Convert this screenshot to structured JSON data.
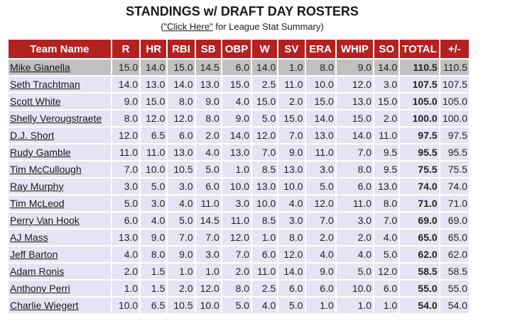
{
  "page": {
    "title": "STANDINGS w/ DRAFT DAY ROSTERS",
    "subtitle_prefix": "(",
    "subtitle_link": "\"Click Here\"",
    "subtitle_suffix": " for League Stat Summary)"
  },
  "colors": {
    "header_bg": "#B22222",
    "header_text": "#FFFFFF",
    "row_bg": "#E4E4F4",
    "highlight_bg": "#C0C0C0"
  },
  "table": {
    "columns": [
      "Team Name",
      "R",
      "HR",
      "RBI",
      "SB",
      "OBP",
      "W",
      "SV",
      "ERA",
      "WHIP",
      "SO",
      "TOTAL",
      "+/-"
    ],
    "rows": [
      {
        "team": "Mike Gianella",
        "highlight": true,
        "stats": [
          "15.0",
          "14.0",
          "15.0",
          "14.5",
          "6.0",
          "14.0",
          "1.0",
          "8.0",
          "9.0",
          "14.0"
        ],
        "total": "110.5",
        "plusminus": "110.5"
      },
      {
        "team": "Seth Trachtman",
        "highlight": false,
        "stats": [
          "14.0",
          "13.0",
          "14.0",
          "13.0",
          "15.0",
          "2.5",
          "11.0",
          "10.0",
          "12.0",
          "3.0"
        ],
        "total": "107.5",
        "plusminus": "107.5"
      },
      {
        "team": "Scott White",
        "highlight": false,
        "stats": [
          "9.0",
          "15.0",
          "8.0",
          "9.0",
          "4.0",
          "15.0",
          "2.0",
          "15.0",
          "13.0",
          "15.0"
        ],
        "total": "105.0",
        "plusminus": "105.0"
      },
      {
        "team": "Shelly Verougstraete",
        "highlight": false,
        "stats": [
          "8.0",
          "12.0",
          "12.0",
          "8.0",
          "9.0",
          "5.0",
          "15.0",
          "14.0",
          "15.0",
          "2.0"
        ],
        "total": "100.0",
        "plusminus": "100.0"
      },
      {
        "team": "D.J. Short",
        "highlight": false,
        "stats": [
          "12.0",
          "6.5",
          "6.0",
          "2.0",
          "14.0",
          "12.0",
          "7.0",
          "13.0",
          "14.0",
          "11.0"
        ],
        "total": "97.5",
        "plusminus": "97.5"
      },
      {
        "team": "Rudy Gamble",
        "highlight": false,
        "stats": [
          "11.0",
          "11.0",
          "13.0",
          "4.0",
          "13.0",
          "7.0",
          "9.0",
          "11.0",
          "7.0",
          "9.5"
        ],
        "total": "95.5",
        "plusminus": "95.5"
      },
      {
        "team": "Tim McCullough",
        "highlight": false,
        "stats": [
          "7.0",
          "10.0",
          "10.5",
          "5.0",
          "1.0",
          "8.5",
          "13.0",
          "3.0",
          "8.0",
          "9.5"
        ],
        "total": "75.5",
        "plusminus": "75.5"
      },
      {
        "team": "Ray Murphy",
        "highlight": false,
        "stats": [
          "3.0",
          "5.0",
          "3.0",
          "6.0",
          "10.0",
          "13.0",
          "10.0",
          "5.0",
          "6.0",
          "13.0"
        ],
        "total": "74.0",
        "plusminus": "74.0"
      },
      {
        "team": "Tim McLeod",
        "highlight": false,
        "stats": [
          "5.0",
          "3.0",
          "4.0",
          "11.0",
          "3.0",
          "10.0",
          "4.0",
          "12.0",
          "11.0",
          "8.0"
        ],
        "total": "71.0",
        "plusminus": "71.0"
      },
      {
        "team": "Perry Van Hook",
        "highlight": false,
        "stats": [
          "6.0",
          "4.0",
          "5.0",
          "14.5",
          "11.0",
          "8.5",
          "3.0",
          "7.0",
          "3.0",
          "7.0"
        ],
        "total": "69.0",
        "plusminus": "69.0"
      },
      {
        "team": "AJ Mass",
        "highlight": false,
        "stats": [
          "13.0",
          "9.0",
          "7.0",
          "7.0",
          "12.0",
          "1.0",
          "8.0",
          "2.0",
          "2.0",
          "4.0"
        ],
        "total": "65.0",
        "plusminus": "65.0"
      },
      {
        "team": "Jeff Barton",
        "highlight": false,
        "stats": [
          "4.0",
          "8.0",
          "9.0",
          "3.0",
          "7.0",
          "6.0",
          "12.0",
          "4.0",
          "4.0",
          "5.0"
        ],
        "total": "62.0",
        "plusminus": "62.0"
      },
      {
        "team": "Adam Ronis",
        "highlight": false,
        "stats": [
          "2.0",
          "1.5",
          "1.0",
          "1.0",
          "2.0",
          "11.0",
          "14.0",
          "9.0",
          "5.0",
          "12.0"
        ],
        "total": "58.5",
        "plusminus": "58.5"
      },
      {
        "team": "Anthony Perri",
        "highlight": false,
        "stats": [
          "1.0",
          "1.5",
          "2.0",
          "12.0",
          "8.0",
          "2.5",
          "6.0",
          "6.0",
          "10.0",
          "6.0"
        ],
        "total": "55.0",
        "plusminus": "55.0"
      },
      {
        "team": "Charlie Wiegert",
        "highlight": false,
        "stats": [
          "10.0",
          "6.5",
          "10.5",
          "10.0",
          "5.0",
          "4.0",
          "5.0",
          "1.0",
          "1.0",
          "1.0"
        ],
        "total": "54.0",
        "plusminus": "54.0"
      }
    ]
  }
}
